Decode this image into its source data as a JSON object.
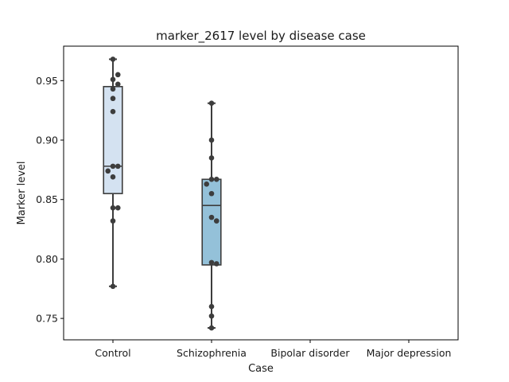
{
  "chart_data": {
    "type": "box",
    "title": "marker_2617 level by disease case",
    "xlabel": "Case",
    "ylabel": "Marker level",
    "categories": [
      "Control",
      "Schizophrenia",
      "Bipolar disorder",
      "Major depression"
    ],
    "ylim": [
      0.732,
      0.979
    ],
    "yticks": [
      0.75,
      0.8,
      0.85,
      0.9,
      0.95
    ],
    "ytick_labels": [
      "0.75",
      "0.80",
      "0.85",
      "0.90",
      "0.95"
    ],
    "grid": false,
    "boxes": [
      {
        "category": "Control",
        "whisker_low": 0.777,
        "q1": 0.855,
        "median": 0.878,
        "q3": 0.945,
        "whisker_high": 0.968,
        "color": "#d4e2f1",
        "points": [
          0.968,
          0.951,
          0.955,
          0.947,
          0.943,
          0.935,
          0.924,
          0.878,
          0.878,
          0.874,
          0.869,
          0.843,
          0.843,
          0.832,
          0.777
        ]
      },
      {
        "category": "Schizophrenia",
        "whisker_low": 0.742,
        "q1": 0.795,
        "median": 0.845,
        "q3": 0.867,
        "whisker_high": 0.931,
        "color": "#94c1d9",
        "points": [
          0.931,
          0.9,
          0.885,
          0.867,
          0.867,
          0.863,
          0.855,
          0.835,
          0.832,
          0.797,
          0.796,
          0.76,
          0.752,
          0.742
        ]
      },
      {
        "category": "Bipolar disorder",
        "points": []
      },
      {
        "category": "Major depression",
        "points": []
      }
    ]
  }
}
